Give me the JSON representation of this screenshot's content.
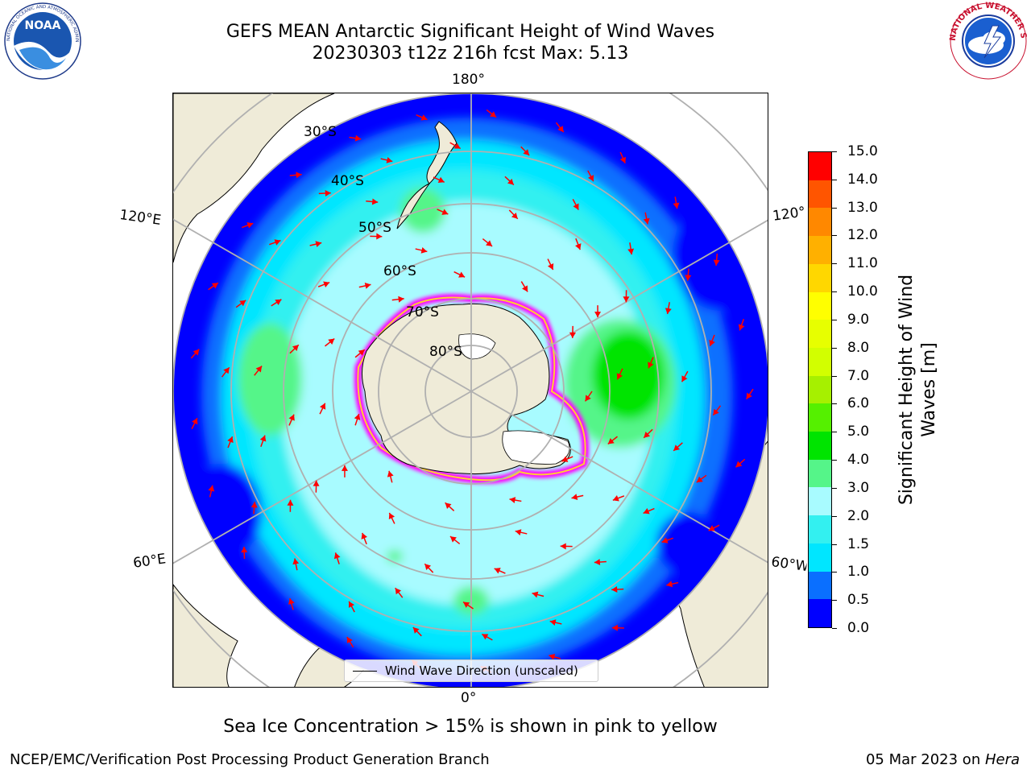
{
  "header": {
    "title_line1": "GEFS MEAN Antarctic Significant Height of Wind Waves",
    "title_line2": "20230303 t12z 216h fcst   Max: 5.13"
  },
  "logos": {
    "noaa_text": "NOAA",
    "noaa_ring_text": "NATIONAL OCEANIC AND ATMOSPHERIC ADMINISTRATION · U.S. DEPARTMENT OF COMMERCE",
    "nws_ring_text": "NATIONAL WEATHER SERVICE"
  },
  "map": {
    "projection": "south-polar-stereographic",
    "lon_labels": {
      "top": "180°",
      "bottom": "0°",
      "left_upper": "120°E",
      "left_lower": "60°E",
      "right_upper": "120°",
      "right_lower": "60°W"
    },
    "lat_labels": [
      "30°S",
      "40°S",
      "50°S",
      "60°S",
      "70°S",
      "80°S"
    ],
    "legend_text": "Wind Wave Direction (unscaled)",
    "colors": {
      "land": "#efebd8",
      "ice_low": "#ff00ff",
      "ice_high": "#ffff00",
      "grid": "#b0b0b0",
      "arrow": "#ff0000"
    }
  },
  "colorbar": {
    "label": "Significant Height of Wind Waves [m]",
    "ticks": [
      "0.0",
      "0.5",
      "1.0",
      "1.5",
      "2.0",
      "3.0",
      "4.0",
      "5.0",
      "6.0",
      "7.0",
      "8.0",
      "9.0",
      "10.0",
      "11.0",
      "12.0",
      "13.0",
      "14.0",
      "15.0"
    ],
    "colors": [
      "#0000ff",
      "#0a6fff",
      "#00e6ff",
      "#33f0f0",
      "#a8fbff",
      "#55f589",
      "#00e400",
      "#55f000",
      "#a6f000",
      "#d2ff00",
      "#e7ff00",
      "#ffff00",
      "#ffd700",
      "#ffb000",
      "#ff8800",
      "#ff5500",
      "#ff0000"
    ]
  },
  "note": "Sea Ice Concentration > 15% is shown in pink to yellow",
  "footer": {
    "left": "NCEP/EMC/Verification Post Processing Product Generation Branch",
    "date": "05 Mar 2023",
    "on": " on ",
    "host": "Hera"
  }
}
